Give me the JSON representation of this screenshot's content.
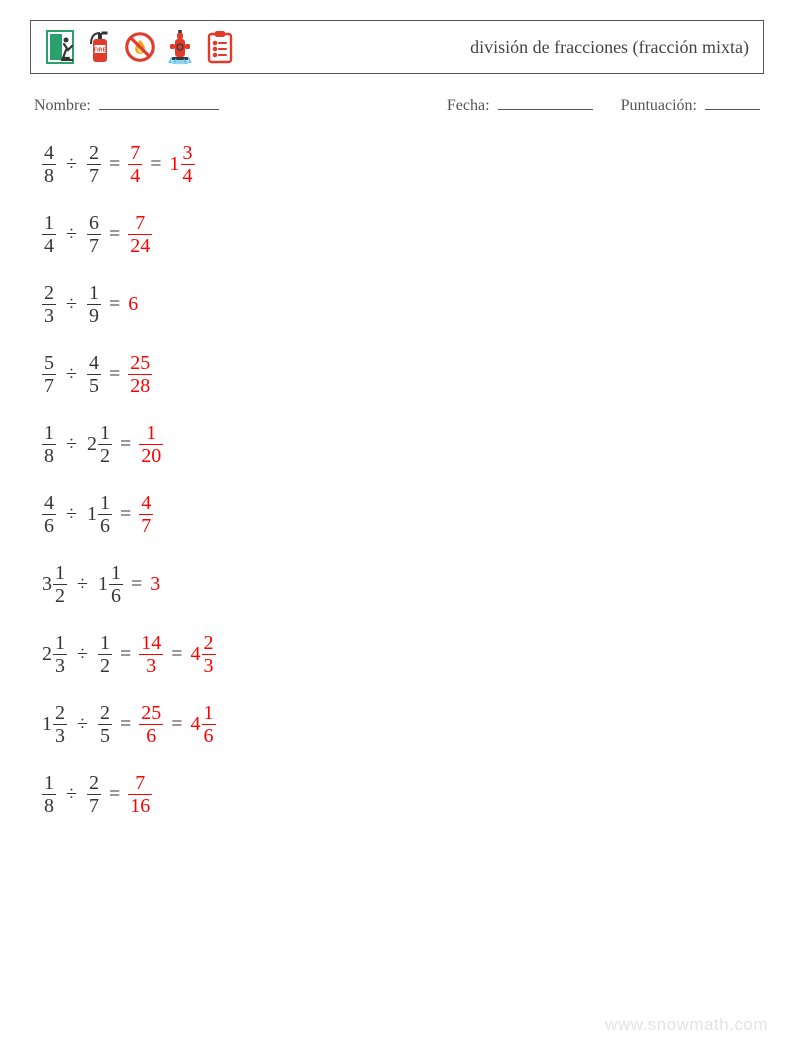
{
  "colors": {
    "text": "#363636",
    "answer": "#ff0000",
    "border": "#555555",
    "watermark": "#e3e3e3",
    "bg": "#ffffff"
  },
  "fontsizes": {
    "title": 18,
    "meta": 16,
    "problem": 20
  },
  "header": {
    "title": "división de fracciones (fracción mixta)",
    "icons": [
      "exit-icon",
      "fire-extinguisher-icon",
      "no-fire-icon",
      "hydrant-icon",
      "clipboard-icon"
    ]
  },
  "meta": {
    "name_label": "Nombre:",
    "date_label": "Fecha:",
    "score_label": "Puntuación:",
    "blank_widths": {
      "name": 120,
      "date": 95,
      "score": 55
    }
  },
  "op_symbol": "÷",
  "eq_symbol": "=",
  "problems": [
    {
      "a": {
        "n": 4,
        "d": 8
      },
      "b": {
        "n": 2,
        "d": 7
      },
      "ans": [
        {
          "n": 7,
          "d": 4
        },
        {
          "w": 1,
          "n": 3,
          "d": 4
        }
      ]
    },
    {
      "a": {
        "n": 1,
        "d": 4
      },
      "b": {
        "n": 6,
        "d": 7
      },
      "ans": [
        {
          "n": 7,
          "d": 24
        }
      ]
    },
    {
      "a": {
        "n": 2,
        "d": 3
      },
      "b": {
        "n": 1,
        "d": 9
      },
      "ans": [
        {
          "int": 6
        }
      ]
    },
    {
      "a": {
        "n": 5,
        "d": 7
      },
      "b": {
        "n": 4,
        "d": 5
      },
      "ans": [
        {
          "n": 25,
          "d": 28
        }
      ]
    },
    {
      "a": {
        "n": 1,
        "d": 8
      },
      "b": {
        "w": 2,
        "n": 1,
        "d": 2
      },
      "ans": [
        {
          "n": 1,
          "d": 20
        }
      ]
    },
    {
      "a": {
        "n": 4,
        "d": 6
      },
      "b": {
        "w": 1,
        "n": 1,
        "d": 6
      },
      "ans": [
        {
          "n": 4,
          "d": 7
        }
      ]
    },
    {
      "a": {
        "w": 3,
        "n": 1,
        "d": 2
      },
      "b": {
        "w": 1,
        "n": 1,
        "d": 6
      },
      "ans": [
        {
          "int": 3
        }
      ]
    },
    {
      "a": {
        "w": 2,
        "n": 1,
        "d": 3
      },
      "b": {
        "n": 1,
        "d": 2
      },
      "ans": [
        {
          "n": 14,
          "d": 3
        },
        {
          "w": 4,
          "n": 2,
          "d": 3
        }
      ]
    },
    {
      "a": {
        "w": 1,
        "n": 2,
        "d": 3
      },
      "b": {
        "n": 2,
        "d": 5
      },
      "ans": [
        {
          "n": 25,
          "d": 6
        },
        {
          "w": 4,
          "n": 1,
          "d": 6
        }
      ]
    },
    {
      "a": {
        "n": 1,
        "d": 8
      },
      "b": {
        "n": 2,
        "d": 7
      },
      "ans": [
        {
          "n": 7,
          "d": 16
        }
      ]
    }
  ],
  "watermark": "www.snowmath.com"
}
